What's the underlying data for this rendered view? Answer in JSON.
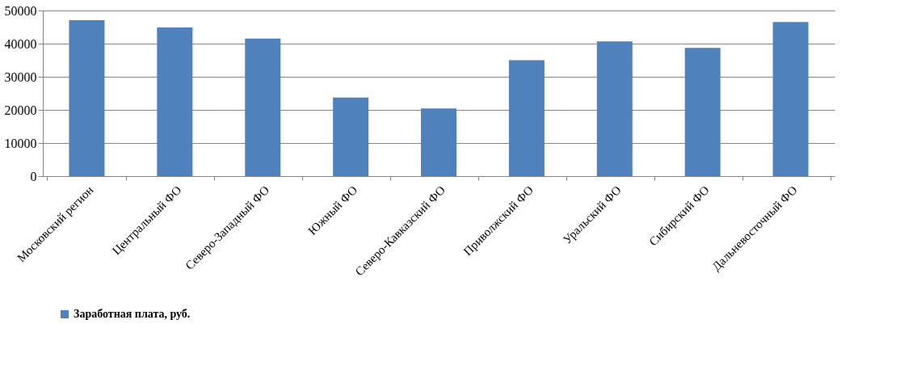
{
  "chart_data": {
    "type": "bar",
    "categories": [
      "Московский регион",
      "Центральный  ФО",
      "Северо-Западный ФО",
      "Южный ФО",
      "Северо-Кавказский ФО",
      "Приволжский ФО",
      "Уральский ФО",
      "Сибирский ФО",
      "Дальневосточный ФО"
    ],
    "series": [
      {
        "name": "Заработная плата, руб.",
        "color": "#4f81bd",
        "values": [
          47100,
          44900,
          41500,
          23700,
          20400,
          35000,
          40700,
          38700,
          46500
        ]
      }
    ],
    "ylim": [
      0,
      50000
    ],
    "yticks": [
      0,
      10000,
      20000,
      30000,
      40000,
      50000
    ],
    "grid": "y",
    "legend": "bottom"
  }
}
